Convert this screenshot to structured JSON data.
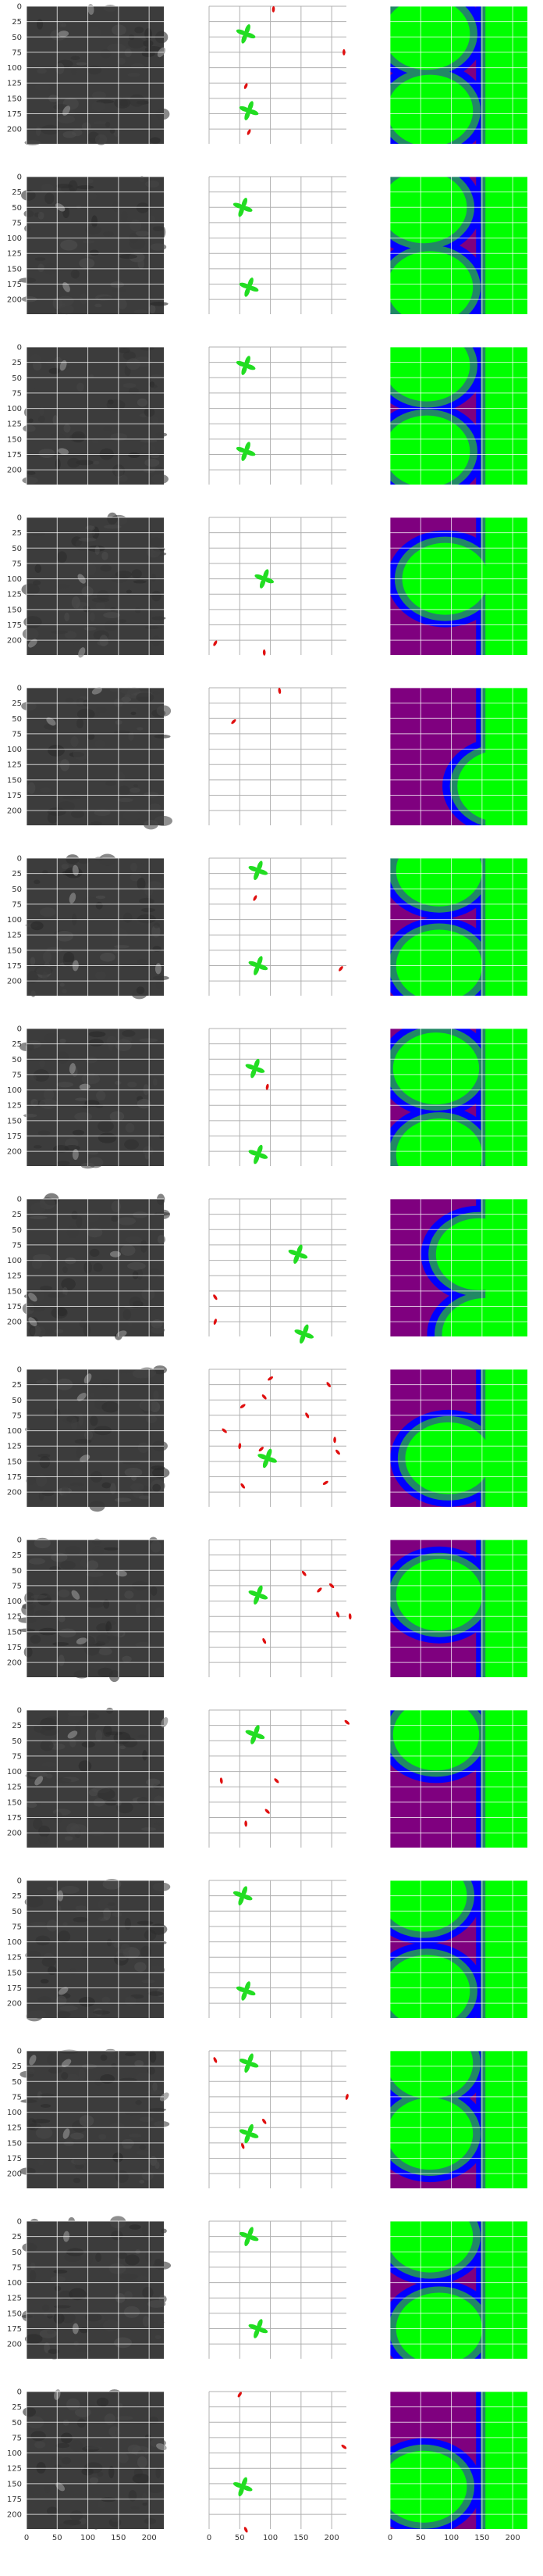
{
  "figure": {
    "rows": 15,
    "cols": 3,
    "panel_types": [
      "grayscale-image",
      "segmentation-scatter",
      "classification-map"
    ]
  },
  "chart_data": {
    "type": "heatmap",
    "title": "",
    "xlabel": "",
    "ylabel": "",
    "xlim": [
      0,
      224
    ],
    "ylim": [
      224,
      0
    ],
    "grid": true,
    "x_ticks": [
      0,
      50,
      100,
      150,
      200
    ],
    "y_ticks": [
      0,
      25,
      50,
      75,
      100,
      125,
      150,
      175,
      200
    ],
    "x_tick_labels": [
      "0",
      "50",
      "100",
      "150",
      "200"
    ],
    "y_tick_labels": [
      "0",
      "25",
      "50",
      "75",
      "100",
      "125",
      "150",
      "175",
      "200"
    ],
    "colors": {
      "image_bg": "#3c3c3c",
      "plant_green": "#22dd22",
      "weed_red": "#e01010",
      "map_purple": "#7f007f",
      "map_blue": "#0000ff",
      "map_teal": "#228866",
      "map_green": "#00ff00"
    },
    "rows": [
      {
        "crops": [
          [
            60,
            45
          ],
          [
            65,
            170
          ]
        ],
        "weeds": [
          [
            105,
            5
          ],
          [
            220,
            75
          ],
          [
            60,
            130
          ],
          [
            65,
            205
          ]
        ]
      },
      {
        "crops": [
          [
            55,
            50
          ],
          [
            65,
            180
          ]
        ],
        "weeds": []
      },
      {
        "crops": [
          [
            60,
            30
          ],
          [
            60,
            170
          ]
        ],
        "weeds": []
      },
      {
        "crops": [
          [
            90,
            100
          ]
        ],
        "weeds": [
          [
            10,
            205
          ],
          [
            90,
            220
          ]
        ]
      },
      {
        "crops": [],
        "weeds": [
          [
            115,
            5
          ],
          [
            40,
            55
          ]
        ]
      },
      {
        "crops": [
          [
            80,
            20
          ],
          [
            80,
            175
          ]
        ],
        "weeds": [
          [
            75,
            65
          ],
          [
            215,
            180
          ]
        ]
      },
      {
        "crops": [
          [
            75,
            65
          ],
          [
            80,
            205
          ]
        ],
        "weeds": [
          [
            95,
            95
          ]
        ]
      },
      {
        "crops": [
          [
            145,
            90
          ],
          [
            155,
            220
          ]
        ],
        "weeds": [
          [
            10,
            160
          ],
          [
            10,
            200
          ]
        ]
      },
      {
        "crops": [
          [
            95,
            145
          ]
        ],
        "weeds": [
          [
            100,
            15
          ],
          [
            90,
            45
          ],
          [
            55,
            60
          ],
          [
            25,
            100
          ],
          [
            50,
            125
          ],
          [
            85,
            130
          ],
          [
            160,
            75
          ],
          [
            195,
            25
          ],
          [
            205,
            115
          ],
          [
            210,
            135
          ],
          [
            55,
            190
          ],
          [
            190,
            185
          ]
        ]
      },
      {
        "crops": [
          [
            80,
            90
          ]
        ],
        "weeds": [
          [
            90,
            165
          ],
          [
            155,
            55
          ],
          [
            180,
            82
          ],
          [
            200,
            75
          ],
          [
            210,
            122
          ],
          [
            230,
            125
          ]
        ]
      },
      {
        "crops": [
          [
            75,
            40
          ]
        ],
        "weeds": [
          [
            225,
            20
          ],
          [
            20,
            115
          ],
          [
            110,
            115
          ],
          [
            95,
            165
          ],
          [
            60,
            185
          ]
        ]
      },
      {
        "crops": [
          [
            55,
            25
          ],
          [
            60,
            180
          ]
        ],
        "weeds": []
      },
      {
        "crops": [
          [
            65,
            20
          ],
          [
            65,
            135
          ]
        ],
        "weeds": [
          [
            10,
            15
          ],
          [
            225,
            75
          ],
          [
            90,
            115
          ],
          [
            55,
            155
          ]
        ]
      },
      {
        "crops": [
          [
            65,
            25
          ],
          [
            80,
            175
          ]
        ],
        "weeds": []
      },
      {
        "crops": [
          [
            55,
            155
          ]
        ],
        "weeds": [
          [
            50,
            5
          ],
          [
            220,
            90
          ],
          [
            60,
            225
          ]
        ]
      }
    ]
  }
}
